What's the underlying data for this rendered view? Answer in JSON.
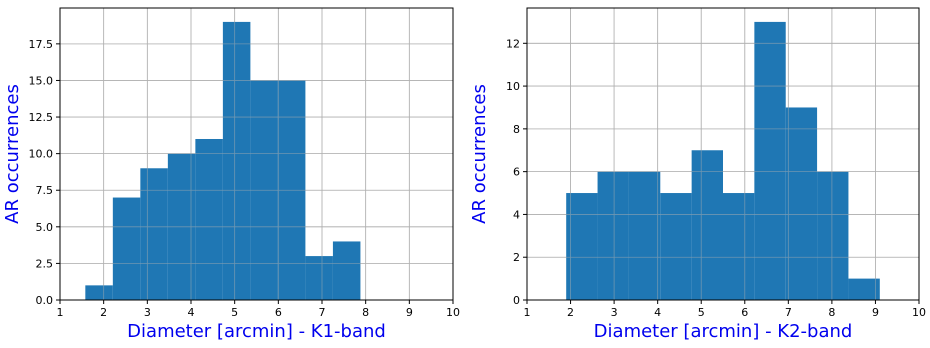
{
  "chart_data": [
    {
      "type": "bar",
      "title": "",
      "xlabel": "Diameter [arcmin] - K1-band",
      "ylabel": "AR occurrences",
      "xlim": [
        1,
        10
      ],
      "ylim": [
        0,
        19.95
      ],
      "xticks": [
        1,
        2,
        3,
        4,
        5,
        6,
        7,
        8,
        9,
        10
      ],
      "yticks": [
        0.0,
        2.5,
        5.0,
        7.5,
        10.0,
        12.5,
        15.0,
        17.5
      ],
      "ytick_labels": [
        "0.0",
        "2.5",
        "5.0",
        "7.5",
        "10.0",
        "12.5",
        "15.0",
        "17.5"
      ],
      "grid": true,
      "bar_color": "#1f77b4",
      "bins": [
        {
          "x0": 1.58,
          "x1": 2.21,
          "count": 1
        },
        {
          "x0": 2.21,
          "x1": 2.84,
          "count": 7
        },
        {
          "x0": 2.84,
          "x1": 3.47,
          "count": 9
        },
        {
          "x0": 3.47,
          "x1": 4.1,
          "count": 10
        },
        {
          "x0": 4.1,
          "x1": 4.73,
          "count": 11
        },
        {
          "x0": 4.73,
          "x1": 5.36,
          "count": 19
        },
        {
          "x0": 5.36,
          "x1": 5.99,
          "count": 15
        },
        {
          "x0": 5.99,
          "x1": 6.62,
          "count": 15
        },
        {
          "x0": 6.62,
          "x1": 7.25,
          "count": 3
        },
        {
          "x0": 7.25,
          "x1": 7.88,
          "count": 4
        }
      ]
    },
    {
      "type": "bar",
      "title": "",
      "xlabel": "Diameter [arcmin] - K2-band",
      "ylabel": "AR occurrences",
      "xlim": [
        1,
        10
      ],
      "ylim": [
        0,
        13.65
      ],
      "xticks": [
        1,
        2,
        3,
        4,
        5,
        6,
        7,
        8,
        9,
        10
      ],
      "yticks": [
        0,
        2,
        4,
        6,
        8,
        10,
        12
      ],
      "ytick_labels": [
        "0",
        "2",
        "4",
        "6",
        "8",
        "10",
        "12"
      ],
      "grid": true,
      "bar_color": "#1f77b4",
      "bins": [
        {
          "x0": 1.9,
          "x1": 2.62,
          "count": 5
        },
        {
          "x0": 2.62,
          "x1": 3.34,
          "count": 6
        },
        {
          "x0": 3.34,
          "x1": 4.06,
          "count": 6
        },
        {
          "x0": 4.06,
          "x1": 4.78,
          "count": 5
        },
        {
          "x0": 4.78,
          "x1": 5.5,
          "count": 7
        },
        {
          "x0": 5.5,
          "x1": 6.22,
          "count": 5
        },
        {
          "x0": 6.22,
          "x1": 6.94,
          "count": 13
        },
        {
          "x0": 6.94,
          "x1": 7.66,
          "count": 9
        },
        {
          "x0": 7.66,
          "x1": 8.38,
          "count": 6
        },
        {
          "x0": 8.38,
          "x1": 9.1,
          "count": 1
        }
      ]
    }
  ]
}
